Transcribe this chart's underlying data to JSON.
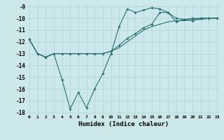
{
  "xlabel": "Humidex (Indice chaleur)",
  "xlim": [
    0,
    23
  ],
  "ylim": [
    -18,
    -9
  ],
  "background_color": "#cce8ea",
  "grid_color": "#b0d8dc",
  "line_color": "#2a7070",
  "series": [
    {
      "x": [
        0,
        1,
        2,
        3,
        4,
        5,
        6,
        7,
        8,
        9,
        10,
        11,
        12,
        13,
        14,
        15,
        16,
        17,
        18,
        19,
        20,
        21,
        22,
        23
      ],
      "y": [
        -11.8,
        -13.0,
        -13.3,
        -13.0,
        -13.0,
        -13.0,
        -13.0,
        -13.0,
        -13.0,
        -13.0,
        -12.8,
        -12.5,
        -12.0,
        -11.5,
        -11.0,
        -10.7,
        -10.5,
        -10.3,
        -10.2,
        -10.2,
        -10.1,
        -10.1,
        -10.0,
        -10.0
      ],
      "has_markers": false
    },
    {
      "x": [
        0,
        1,
        2,
        3,
        4,
        5,
        6,
        7,
        8,
        9,
        10,
        11,
        12,
        13,
        14,
        15,
        16,
        17,
        18,
        19,
        20,
        21,
        22,
        23
      ],
      "y": [
        -11.8,
        -13.0,
        -13.3,
        -13.0,
        -15.2,
        -17.7,
        -16.3,
        -17.6,
        -16.0,
        -14.7,
        -13.0,
        -10.7,
        -9.2,
        -9.5,
        -9.3,
        -9.1,
        -9.2,
        -9.5,
        -10.3,
        -10.1,
        -10.2,
        -10.0,
        -10.0,
        -10.0
      ],
      "has_markers": true
    },
    {
      "x": [
        0,
        1,
        2,
        3,
        4,
        5,
        6,
        7,
        8,
        9,
        10,
        11,
        12,
        13,
        14,
        15,
        16,
        17,
        18,
        19,
        20,
        21,
        22,
        23
      ],
      "y": [
        -11.8,
        -13.0,
        -13.3,
        -13.0,
        -13.0,
        -13.0,
        -13.0,
        -13.0,
        -13.0,
        -13.0,
        -12.8,
        -12.3,
        -11.7,
        -11.3,
        -10.8,
        -10.5,
        -9.5,
        -9.5,
        -10.0,
        -10.1,
        -10.0,
        -10.0,
        -10.0,
        -10.0
      ],
      "has_markers": true
    }
  ],
  "yticks": [
    -9,
    -10,
    -11,
    -12,
    -13,
    -14,
    -15,
    -16,
    -17,
    -18
  ],
  "xticks": [
    0,
    1,
    2,
    3,
    4,
    5,
    6,
    7,
    8,
    9,
    10,
    11,
    12,
    13,
    14,
    15,
    16,
    17,
    18,
    19,
    20,
    21,
    22,
    23
  ]
}
